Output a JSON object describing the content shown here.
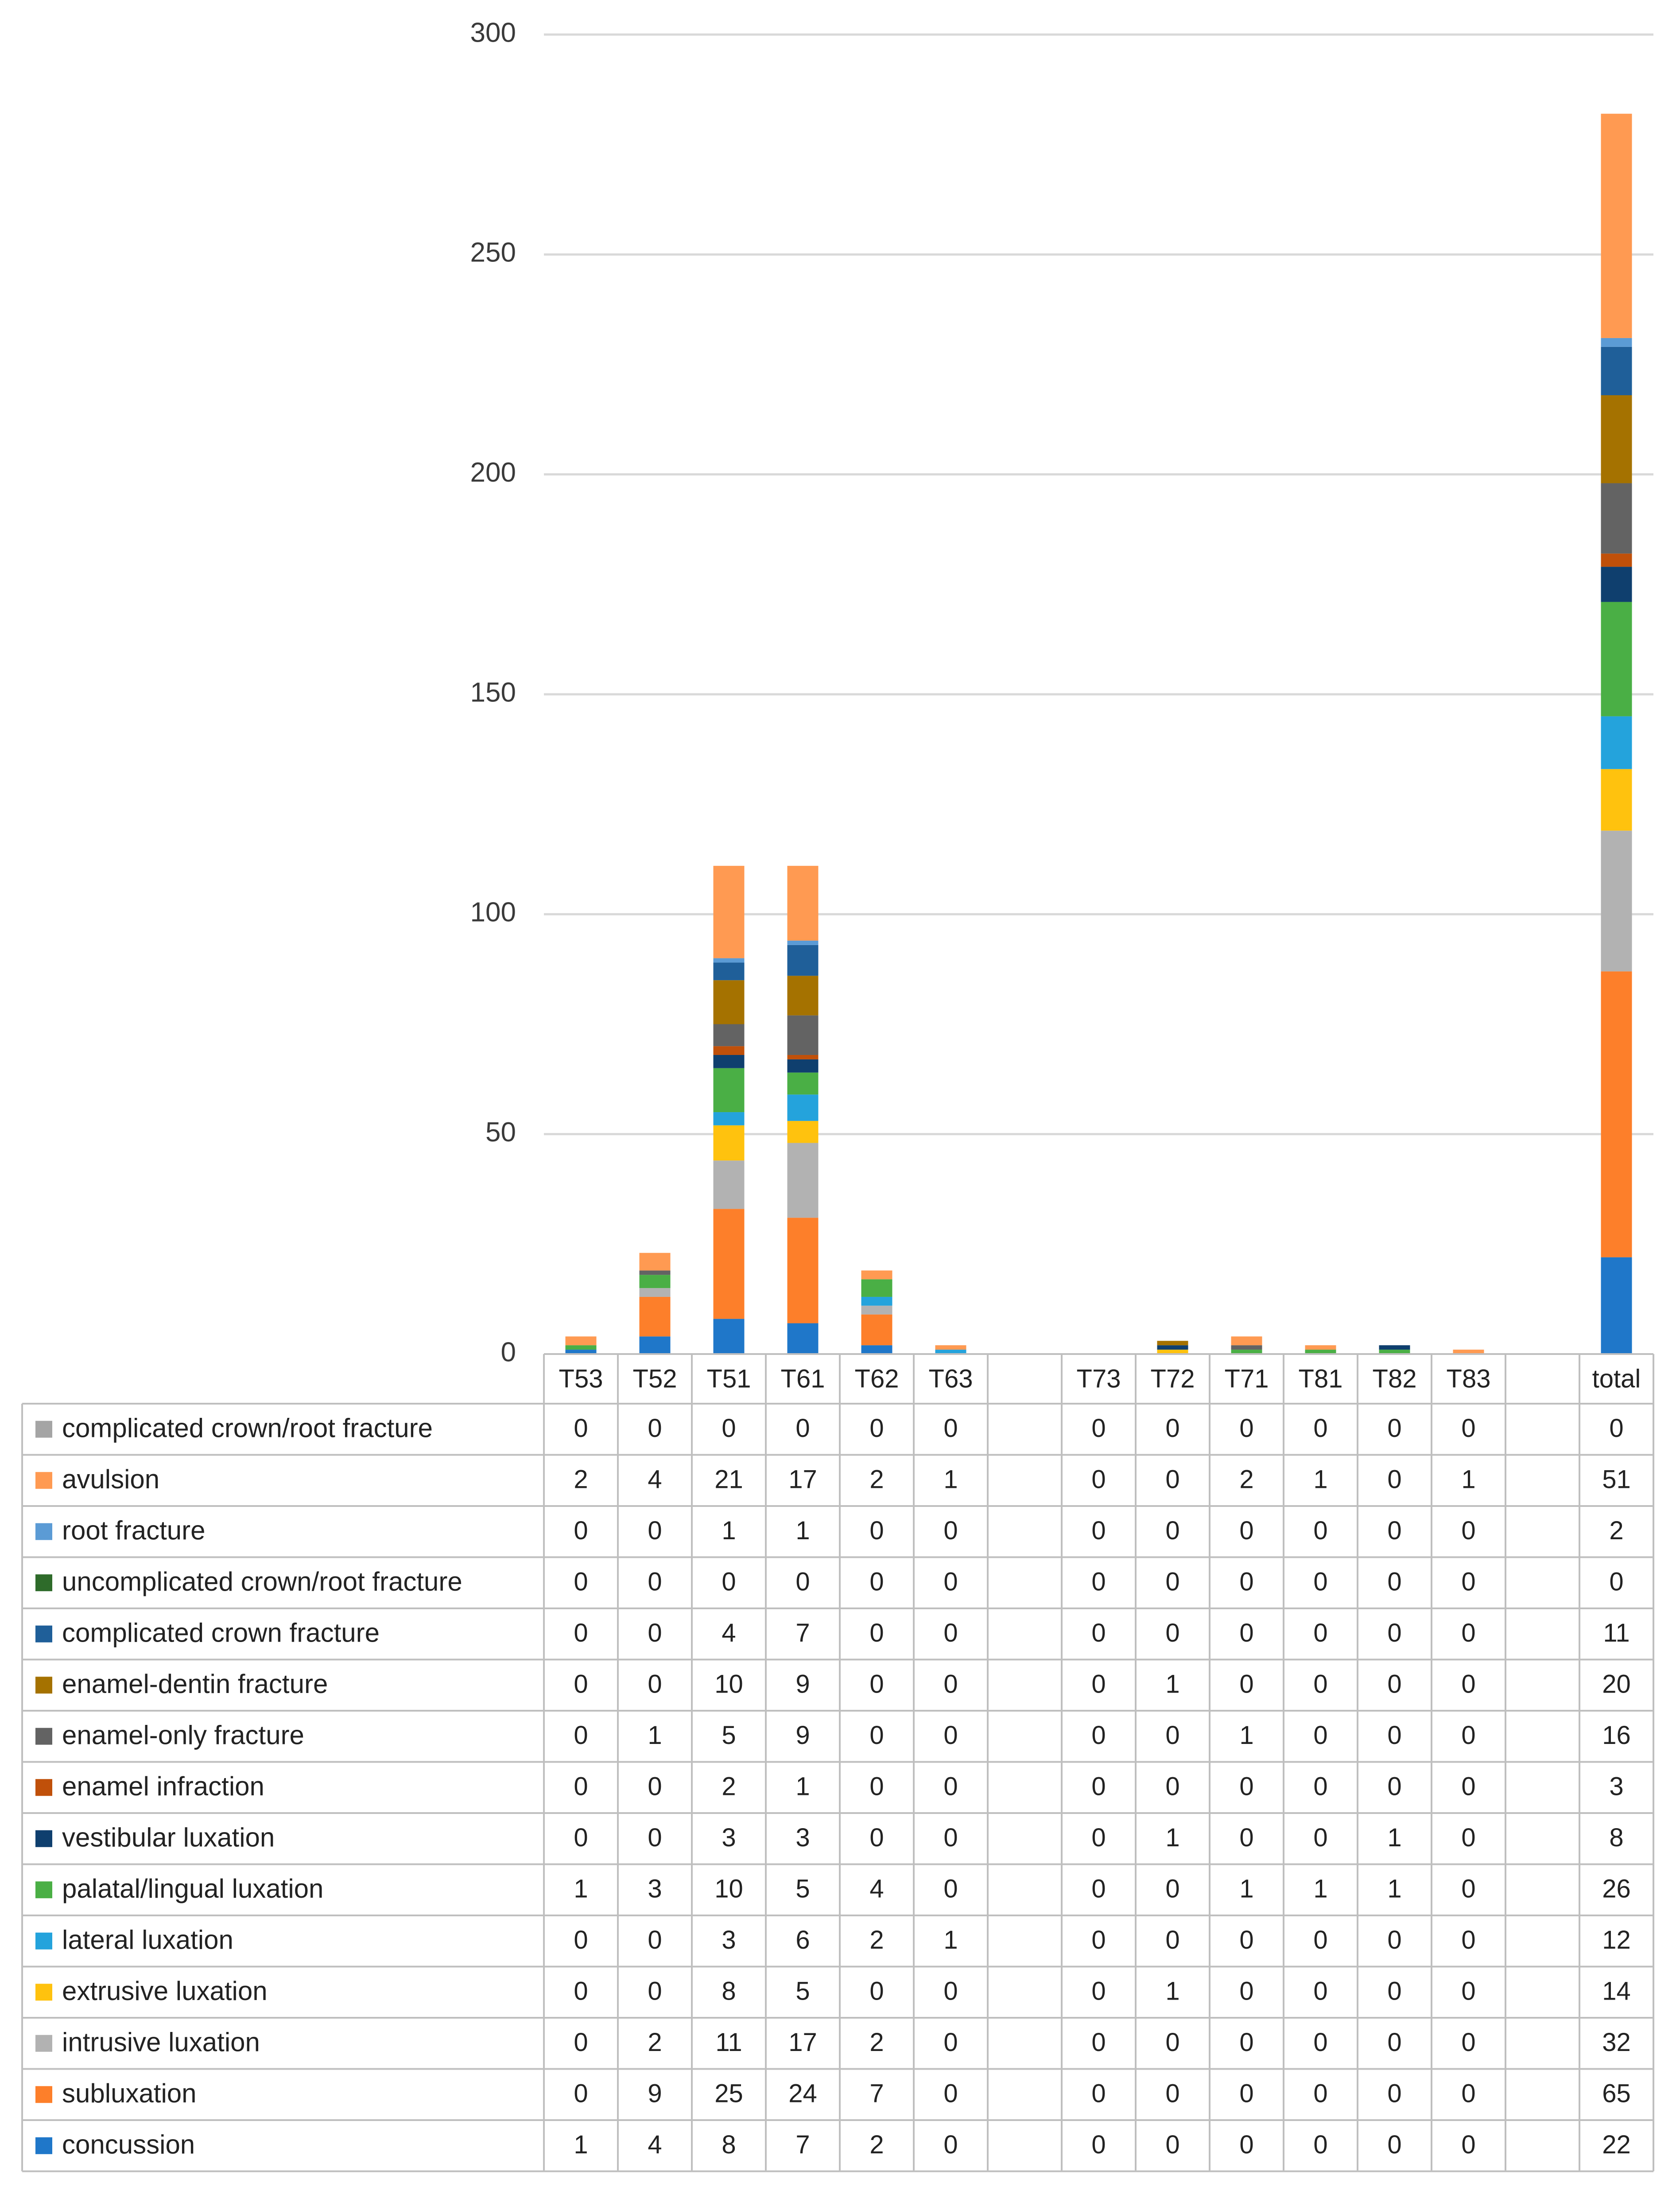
{
  "chart_data": {
    "type": "bar",
    "stacked": true,
    "title": "",
    "xlabel": "",
    "ylabel": "",
    "ylim": [
      0,
      300
    ],
    "yticks": [
      0,
      50,
      100,
      150,
      200,
      250,
      300
    ],
    "grid": true,
    "legend_position": "table-left",
    "categories": [
      "T53",
      "T52",
      "T51",
      "T61",
      "T62",
      "T63",
      "",
      "T73",
      "T72",
      "T71",
      "T81",
      "T82",
      "T83",
      "",
      "total"
    ],
    "series": [
      {
        "name": "complicated crown/root fracture",
        "color": "#a5a5a5",
        "values": [
          0,
          0,
          0,
          0,
          0,
          0,
          null,
          0,
          0,
          0,
          0,
          0,
          0,
          null,
          0
        ]
      },
      {
        "name": "avulsion",
        "color": "#ff9a52",
        "values": [
          2,
          4,
          21,
          17,
          2,
          1,
          null,
          0,
          0,
          2,
          1,
          0,
          1,
          null,
          51
        ]
      },
      {
        "name": "root fracture",
        "color": "#5b9bd5",
        "values": [
          0,
          0,
          1,
          1,
          0,
          0,
          null,
          0,
          0,
          0,
          0,
          0,
          0,
          null,
          2
        ]
      },
      {
        "name": "uncomplicated crown/root fracture",
        "color": "#2e6b2a",
        "values": [
          0,
          0,
          0,
          0,
          0,
          0,
          null,
          0,
          0,
          0,
          0,
          0,
          0,
          null,
          0
        ]
      },
      {
        "name": "complicated crown fracture",
        "color": "#1f5f99",
        "values": [
          0,
          0,
          4,
          7,
          0,
          0,
          null,
          0,
          0,
          0,
          0,
          0,
          0,
          null,
          11
        ]
      },
      {
        "name": "enamel-dentin fracture",
        "color": "#a57200",
        "values": [
          0,
          0,
          10,
          9,
          0,
          0,
          null,
          0,
          1,
          0,
          0,
          0,
          0,
          null,
          20
        ]
      },
      {
        "name": "enamel-only fracture",
        "color": "#636363",
        "values": [
          0,
          1,
          5,
          9,
          0,
          0,
          null,
          0,
          0,
          1,
          0,
          0,
          0,
          null,
          16
        ]
      },
      {
        "name": "enamel infraction",
        "color": "#c0500a",
        "values": [
          0,
          0,
          2,
          1,
          0,
          0,
          null,
          0,
          0,
          0,
          0,
          0,
          0,
          null,
          3
        ]
      },
      {
        "name": "vestibular luxation",
        "color": "#0f3f6e",
        "values": [
          0,
          0,
          3,
          3,
          0,
          0,
          null,
          0,
          1,
          0,
          0,
          1,
          0,
          null,
          8
        ]
      },
      {
        "name": "palatal/lingual luxation",
        "color": "#4aaf45",
        "values": [
          1,
          3,
          10,
          5,
          4,
          0,
          null,
          0,
          0,
          1,
          1,
          1,
          0,
          null,
          26
        ]
      },
      {
        "name": "lateral luxation",
        "color": "#24a3dc",
        "values": [
          0,
          0,
          3,
          6,
          2,
          1,
          null,
          0,
          0,
          0,
          0,
          0,
          0,
          null,
          12
        ]
      },
      {
        "name": "extrusive luxation",
        "color": "#ffc20e",
        "values": [
          0,
          0,
          8,
          5,
          0,
          0,
          null,
          0,
          1,
          0,
          0,
          0,
          0,
          null,
          14
        ]
      },
      {
        "name": "intrusive luxation",
        "color": "#b2b2b2",
        "values": [
          0,
          2,
          11,
          17,
          2,
          0,
          null,
          0,
          0,
          0,
          0,
          0,
          0,
          null,
          32
        ]
      },
      {
        "name": "subluxation",
        "color": "#fd7f2a",
        "values": [
          0,
          9,
          25,
          24,
          7,
          0,
          null,
          0,
          0,
          0,
          0,
          0,
          0,
          null,
          65
        ]
      },
      {
        "name": "concussion",
        "color": "#1f77c9",
        "values": [
          1,
          4,
          8,
          7,
          2,
          0,
          null,
          0,
          0,
          0,
          0,
          0,
          0,
          null,
          22
        ]
      }
    ]
  }
}
